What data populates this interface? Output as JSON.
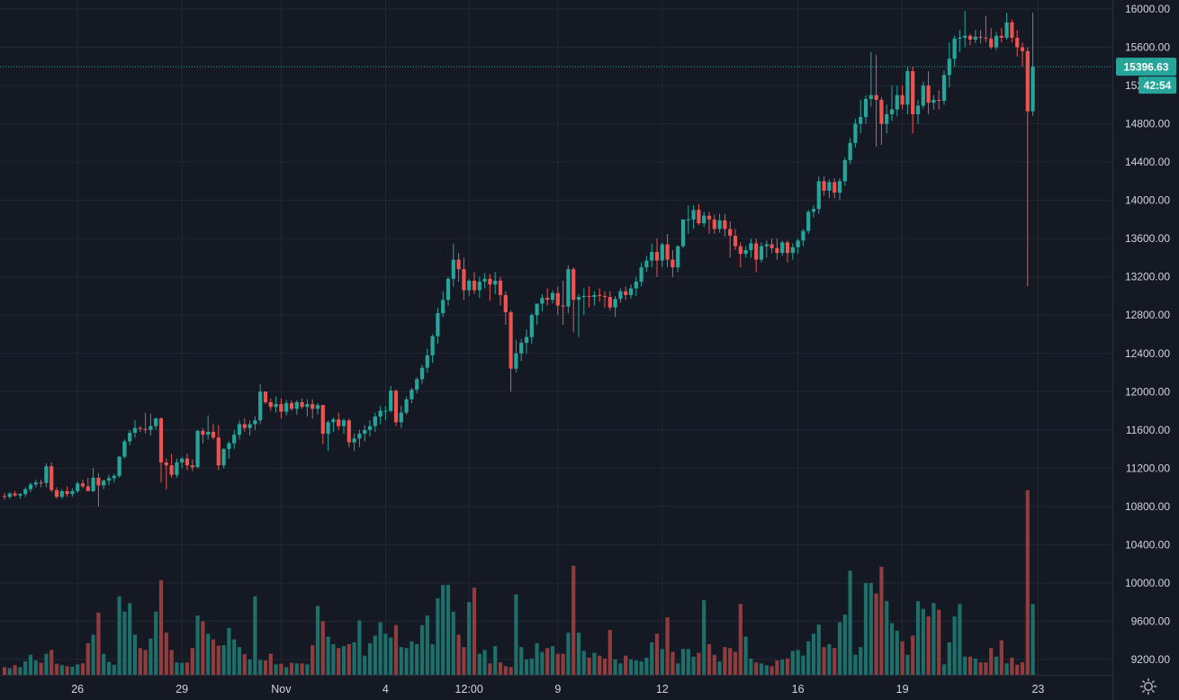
{
  "chart_data": {
    "type": "candlestick",
    "colors": {
      "background": "#151924",
      "grid": "#232733",
      "up": "#26a69a",
      "down": "#ef5350",
      "volume_up": "#1e6e69",
      "volume_down": "#913d3e",
      "text": "#d1d4dc",
      "price_line": "#26a69a"
    },
    "y_axis": {
      "ticks": [
        9200,
        9600,
        10000,
        10400,
        10800,
        11200,
        11600,
        12000,
        12400,
        12800,
        13200,
        13600,
        14000,
        14400,
        14800,
        15200,
        15600,
        16000
      ],
      "tick_labels": [
        "9200.00",
        "9600.00",
        "10000.00",
        "10400.00",
        "10800.00",
        "11200.00",
        "11600.00",
        "12000.00",
        "12400.00",
        "12800.00",
        "13200.00",
        "13600.00",
        "14000.00",
        "14400.00",
        "14800.00",
        "15200.00",
        "15600.00",
        "16000.00"
      ],
      "range": [
        9000,
        16100
      ]
    },
    "x_axis": {
      "ticks": [
        {
          "label": "26",
          "index": 14
        },
        {
          "label": "29",
          "index": 34
        },
        {
          "label": "Nov",
          "index": 53
        },
        {
          "label": "4",
          "index": 73
        },
        {
          "label": "12:00",
          "index": 89
        },
        {
          "label": "9",
          "index": 106
        },
        {
          "label": "12",
          "index": 126
        },
        {
          "label": "16",
          "index": 152
        },
        {
          "label": "19",
          "index": 172
        },
        {
          "label": "23",
          "index": 198
        }
      ]
    },
    "last_price": 15396.63,
    "last_price_label": "15396.63",
    "countdown_label": "42:54",
    "volume_max": 10970,
    "candles": [
      [
        10910,
        10940,
        10870,
        10900,
        9120
      ],
      [
        10900,
        10950,
        10880,
        10935,
        9110
      ],
      [
        10935,
        10960,
        10900,
        10915,
        9140
      ],
      [
        10915,
        10940,
        10880,
        10930,
        9120
      ],
      [
        10930,
        11000,
        10900,
        10980,
        9180
      ],
      [
        10980,
        11050,
        10950,
        11030,
        9250
      ],
      [
        11030,
        11080,
        11000,
        11050,
        9190
      ],
      [
        11050,
        11080,
        11000,
        11045,
        9165
      ],
      [
        11045,
        11250,
        11000,
        11220,
        9260
      ],
      [
        11220,
        11260,
        10950,
        10970,
        9300
      ],
      [
        10970,
        11000,
        10880,
        10900,
        9155
      ],
      [
        10900,
        10980,
        10880,
        10960,
        9140
      ],
      [
        10960,
        11010,
        10900,
        10930,
        9130
      ],
      [
        10930,
        10990,
        10900,
        10960,
        9125
      ],
      [
        10960,
        11060,
        10940,
        11040,
        9150
      ],
      [
        11040,
        11080,
        10990,
        11010,
        9160
      ],
      [
        11010,
        11100,
        10960,
        10960,
        9370
      ],
      [
        10960,
        11200,
        10950,
        11100,
        9460
      ],
      [
        11100,
        11150,
        10800,
        11020,
        9690
      ],
      [
        11020,
        11080,
        10980,
        11070,
        9260
      ],
      [
        11070,
        11130,
        11020,
        11095,
        9175
      ],
      [
        11095,
        11140,
        11050,
        11120,
        9145
      ],
      [
        11120,
        11330,
        11100,
        11320,
        9860
      ],
      [
        11320,
        11500,
        11300,
        11480,
        9700
      ],
      [
        11480,
        11600,
        11440,
        11570,
        9790
      ],
      [
        11570,
        11700,
        11520,
        11620,
        9460
      ],
      [
        11620,
        11640,
        11580,
        11610,
        9320
      ],
      [
        11610,
        11780,
        11560,
        11600,
        9300
      ],
      [
        11600,
        11770,
        11540,
        11640,
        9420
      ],
      [
        11640,
        11730,
        11600,
        11720,
        9700
      ],
      [
        11720,
        11730,
        11050,
        11260,
        10030
      ],
      [
        11260,
        11300,
        10980,
        11230,
        9480
      ],
      [
        11230,
        11350,
        11100,
        11130,
        9300
      ],
      [
        11130,
        11300,
        11100,
        11260,
        9170
      ],
      [
        11260,
        11320,
        11200,
        11300,
        9165
      ],
      [
        11300,
        11350,
        11180,
        11230,
        9170
      ],
      [
        11230,
        11290,
        11170,
        11210,
        9320
      ],
      [
        11210,
        11600,
        11200,
        11590,
        9660
      ],
      [
        11590,
        11620,
        11460,
        11550,
        9600
      ],
      [
        11550,
        11750,
        11500,
        11580,
        9470
      ],
      [
        11580,
        11660,
        11500,
        11520,
        9410
      ],
      [
        11520,
        11650,
        11180,
        11230,
        9345
      ],
      [
        11230,
        11410,
        11200,
        11400,
        9350
      ],
      [
        11400,
        11480,
        11300,
        11460,
        9530
      ],
      [
        11460,
        11600,
        11400,
        11550,
        9410
      ],
      [
        11550,
        11700,
        11500,
        11660,
        9330
      ],
      [
        11660,
        11720,
        11580,
        11620,
        9255
      ],
      [
        11620,
        11700,
        11540,
        11660,
        9200
      ],
      [
        11660,
        11740,
        11600,
        11700,
        9860
      ],
      [
        11700,
        12080,
        11660,
        12000,
        9195
      ],
      [
        12000,
        12000,
        11870,
        11890,
        9190
      ],
      [
        11890,
        11930,
        11800,
        11840,
        9260
      ],
      [
        11840,
        11950,
        11780,
        11870,
        9150
      ],
      [
        11870,
        11930,
        11720,
        11790,
        9155
      ],
      [
        11790,
        11910,
        11750,
        11880,
        9120
      ],
      [
        11880,
        11910,
        11800,
        11820,
        9165
      ],
      [
        11820,
        11910,
        11760,
        11890,
        9160
      ],
      [
        11890,
        11930,
        11820,
        11840,
        9160
      ],
      [
        11840,
        11920,
        11740,
        11870,
        9150
      ],
      [
        11870,
        11920,
        11720,
        11820,
        9350
      ],
      [
        11820,
        11880,
        11760,
        11860,
        9760
      ],
      [
        11860,
        11860,
        11450,
        11560,
        9600
      ],
      [
        11560,
        11700,
        11380,
        11680,
        9440
      ],
      [
        11680,
        11730,
        11580,
        11710,
        9360
      ],
      [
        11710,
        11780,
        11600,
        11640,
        9320
      ],
      [
        11640,
        11720,
        11560,
        11700,
        9340
      ],
      [
        11700,
        11720,
        11420,
        11470,
        9360
      ],
      [
        11470,
        11560,
        11380,
        11510,
        9380
      ],
      [
        11510,
        11600,
        11420,
        11560,
        9610
      ],
      [
        11560,
        11650,
        11480,
        11600,
        9240
      ],
      [
        11600,
        11700,
        11530,
        11640,
        9370
      ],
      [
        11640,
        11780,
        11580,
        11740,
        9450
      ],
      [
        11740,
        11850,
        11660,
        11800,
        9590
      ],
      [
        11800,
        11850,
        11700,
        11800,
        9470
      ],
      [
        11800,
        12060,
        11780,
        12010,
        9430
      ],
      [
        12010,
        12020,
        11640,
        11680,
        9560
      ],
      [
        11680,
        11850,
        11620,
        11780,
        9330
      ],
      [
        11780,
        11950,
        11760,
        11920,
        9320
      ],
      [
        11920,
        12040,
        11880,
        12020,
        9390
      ],
      [
        12020,
        12150,
        11980,
        12130,
        9360
      ],
      [
        12130,
        12280,
        12080,
        12250,
        9560
      ],
      [
        12250,
        12450,
        12200,
        12380,
        9660
      ],
      [
        12380,
        12600,
        12300,
        12580,
        9360
      ],
      [
        12580,
        12880,
        12500,
        12820,
        9840
      ],
      [
        12820,
        13050,
        12780,
        12960,
        9980
      ],
      [
        12960,
        13200,
        12900,
        13180,
        9980
      ],
      [
        13180,
        13550,
        13100,
        13380,
        9700
      ],
      [
        13380,
        13450,
        13150,
        13280,
        9460
      ],
      [
        13280,
        13400,
        12960,
        13060,
        9330
      ],
      [
        13060,
        13180,
        13000,
        13160,
        9800
      ],
      [
        13160,
        13250,
        13020,
        13060,
        9950
      ],
      [
        13060,
        13200,
        12980,
        13150,
        9260
      ],
      [
        13150,
        13240,
        13080,
        13180,
        9300
      ],
      [
        13180,
        13230,
        12950,
        13120,
        9160
      ],
      [
        13120,
        13250,
        13020,
        13160,
        9340
      ],
      [
        13160,
        13200,
        12900,
        13010,
        9170
      ],
      [
        13010,
        13050,
        12700,
        12830,
        9130
      ],
      [
        12830,
        12850,
        12000,
        12240,
        9120
      ],
      [
        12240,
        12540,
        12200,
        12400,
        9880
      ],
      [
        12400,
        12550,
        12320,
        12510,
        9330
      ],
      [
        12510,
        12650,
        12400,
        12570,
        9200
      ],
      [
        12570,
        12820,
        12500,
        12800,
        9210
      ],
      [
        12800,
        12920,
        12700,
        12920,
        9370
      ],
      [
        12920,
        13020,
        12840,
        12980,
        9280
      ],
      [
        12980,
        13080,
        12900,
        12960,
        9320
      ],
      [
        12960,
        13060,
        12920,
        13030,
        9340
      ],
      [
        13030,
        13100,
        12800,
        12900,
        9260
      ],
      [
        12900,
        13160,
        12700,
        12890,
        9260
      ],
      [
        12890,
        13320,
        12820,
        13280,
        9480
      ],
      [
        13280,
        13300,
        12620,
        12960,
        10180
      ],
      [
        12960,
        13020,
        12570,
        12990,
        9480
      ],
      [
        12990,
        13080,
        12800,
        13000,
        9290
      ],
      [
        13000,
        13100,
        12880,
        12990,
        9220
      ],
      [
        12990,
        13050,
        12900,
        13010,
        9270
      ],
      [
        13010,
        13080,
        12940,
        13000,
        9240
      ],
      [
        13000,
        13050,
        12880,
        12990,
        9210
      ],
      [
        12990,
        13050,
        12850,
        12880,
        9510
      ],
      [
        12880,
        13000,
        12780,
        12970,
        9200
      ],
      [
        12970,
        13080,
        12930,
        13050,
        9160
      ],
      [
        13050,
        13100,
        12960,
        13010,
        9240
      ],
      [
        13010,
        13120,
        12970,
        13080,
        9200
      ],
      [
        13080,
        13200,
        13000,
        13150,
        9190
      ],
      [
        13150,
        13350,
        13100,
        13300,
        9180
      ],
      [
        13300,
        13420,
        13250,
        13370,
        9220
      ],
      [
        13370,
        13550,
        13300,
        13460,
        9380
      ],
      [
        13460,
        13600,
        13200,
        13370,
        9470
      ],
      [
        13370,
        13560,
        13300,
        13540,
        9310
      ],
      [
        13540,
        13650,
        13300,
        13380,
        9640
      ],
      [
        13380,
        13480,
        13200,
        13300,
        9280
      ],
      [
        13300,
        13530,
        13250,
        13520,
        9160
      ],
      [
        13520,
        13800,
        13500,
        13800,
        9310
      ],
      [
        13800,
        13950,
        13650,
        13800,
        9310
      ],
      [
        13800,
        13950,
        13700,
        13900,
        9230
      ],
      [
        13900,
        13960,
        13740,
        13760,
        9270
      ],
      [
        13760,
        13880,
        13720,
        13840,
        9820
      ],
      [
        13840,
        13880,
        13650,
        13800,
        9360
      ],
      [
        13800,
        13850,
        13650,
        13700,
        9250
      ],
      [
        13700,
        13860,
        13660,
        13790,
        9180
      ],
      [
        13790,
        13860,
        13620,
        13700,
        9330
      ],
      [
        13700,
        13780,
        13400,
        13630,
        9320
      ],
      [
        13630,
        13700,
        13480,
        13520,
        9280
      ],
      [
        13520,
        13560,
        13300,
        13440,
        9780
      ],
      [
        13440,
        13520,
        13400,
        13480,
        9440
      ],
      [
        13480,
        13600,
        13400,
        13550,
        9210
      ],
      [
        13550,
        13600,
        13250,
        13380,
        9170
      ],
      [
        13380,
        13560,
        13350,
        13520,
        9160
      ],
      [
        13520,
        13580,
        13400,
        13540,
        9140
      ],
      [
        13540,
        13600,
        13450,
        13500,
        9130
      ],
      [
        13500,
        13600,
        13380,
        13450,
        9190
      ],
      [
        13450,
        13580,
        13420,
        13560,
        9200
      ],
      [
        13560,
        13580,
        13350,
        13450,
        9210
      ],
      [
        13450,
        13550,
        13380,
        13510,
        9290
      ],
      [
        13510,
        13600,
        13440,
        13580,
        9300
      ],
      [
        13580,
        13700,
        13520,
        13680,
        9240
      ],
      [
        13680,
        13900,
        13650,
        13880,
        9390
      ],
      [
        13880,
        13950,
        13820,
        13910,
        9470
      ],
      [
        13910,
        14250,
        13860,
        14200,
        9565
      ],
      [
        14200,
        14250,
        14050,
        14100,
        9330
      ],
      [
        14100,
        14220,
        14020,
        14190,
        9360
      ],
      [
        14190,
        14230,
        14020,
        14080,
        9320
      ],
      [
        14080,
        14230,
        14000,
        14200,
        9590
      ],
      [
        14200,
        14450,
        14150,
        14420,
        9670
      ],
      [
        14420,
        14650,
        14380,
        14600,
        10130
      ],
      [
        14600,
        14850,
        14550,
        14800,
        9250
      ],
      [
        14800,
        15050,
        14700,
        14870,
        9330
      ],
      [
        14870,
        15100,
        14800,
        15060,
        10000
      ],
      [
        15060,
        15550,
        14980,
        15100,
        10000
      ],
      [
        15100,
        15520,
        14560,
        15050,
        9890
      ],
      [
        15050,
        15080,
        14580,
        14800,
        10170
      ],
      [
        14800,
        15000,
        14700,
        14900,
        9810
      ],
      [
        14900,
        15200,
        14830,
        14950,
        9580
      ],
      [
        14950,
        15200,
        14880,
        15100,
        9500
      ],
      [
        15100,
        15200,
        14950,
        15000,
        9390
      ],
      [
        15000,
        15400,
        14900,
        15350,
        9250
      ],
      [
        15350,
        15400,
        14700,
        14900,
        9450
      ],
      [
        14900,
        15050,
        14800,
        14990,
        9810
      ],
      [
        14990,
        15240,
        14960,
        15200,
        9730
      ],
      [
        15200,
        15350,
        14900,
        15020,
        9650
      ],
      [
        15020,
        15100,
        14950,
        15050,
        9790
      ],
      [
        15050,
        15150,
        14950,
        15040,
        9720
      ],
      [
        15040,
        15360,
        15000,
        15310,
        9150
      ],
      [
        15310,
        15650,
        15180,
        15480,
        9380
      ],
      [
        15480,
        15720,
        15400,
        15690,
        9650
      ],
      [
        15690,
        15780,
        15550,
        15700,
        9780
      ],
      [
        15700,
        15980,
        15600,
        15720,
        9230
      ],
      [
        15720,
        15740,
        15620,
        15680,
        9230
      ],
      [
        15680,
        15780,
        15640,
        15710,
        9210
      ],
      [
        15710,
        15780,
        15640,
        15700,
        9170
      ],
      [
        15700,
        15930,
        15650,
        15690,
        9170
      ],
      [
        15690,
        15800,
        15580,
        15600,
        9320
      ],
      [
        15600,
        15760,
        15570,
        15720,
        9230
      ],
      [
        15720,
        15800,
        15650,
        15700,
        9400
      ],
      [
        15700,
        15960,
        15680,
        15860,
        9160
      ],
      [
        15860,
        15890,
        15650,
        15700,
        9220
      ],
      [
        15700,
        15780,
        15500,
        15600,
        9145
      ],
      [
        15600,
        15650,
        15400,
        15560,
        9170
      ],
      [
        15560,
        15600,
        13100,
        14930,
        10970
      ],
      [
        14930,
        15960,
        14880,
        15396.63,
        9780
      ]
    ]
  },
  "ui": {
    "settings_icon": "gear-icon"
  }
}
